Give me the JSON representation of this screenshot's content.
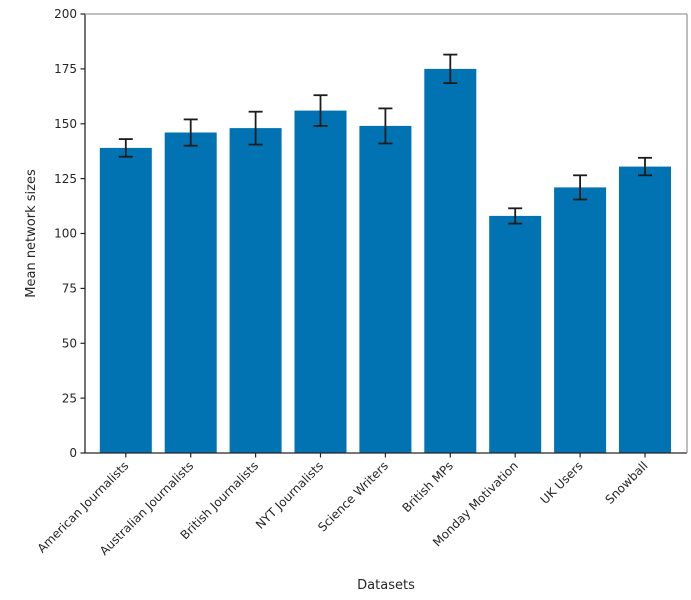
{
  "figure": {
    "background": "#ffffff"
  },
  "chart_data": {
    "type": "bar",
    "title": "",
    "xlabel": "Datasets",
    "ylabel": "Mean network sizes",
    "categories": [
      "American Journalists",
      "Australian Journalists",
      "British Journalists",
      "NYT Journalists",
      "Science Writers",
      "British MPs",
      "Monday Motivation",
      "UK Users",
      "Snowball"
    ],
    "values": [
      139,
      146,
      148,
      156,
      149,
      175,
      108,
      121,
      130.5
    ],
    "errors": [
      4,
      6,
      7.5,
      7,
      8,
      6.5,
      3.5,
      5.5,
      4
    ],
    "ylim": [
      0,
      200
    ],
    "yticks": [
      0,
      25,
      50,
      75,
      100,
      125,
      150,
      175,
      200
    ],
    "grid": false,
    "legend_position": "none",
    "bar_color": "#0173b2",
    "error_color": "#1c1c1c",
    "spine_dark_color": "#262626",
    "spine_light_color": "#9b9b9b"
  }
}
